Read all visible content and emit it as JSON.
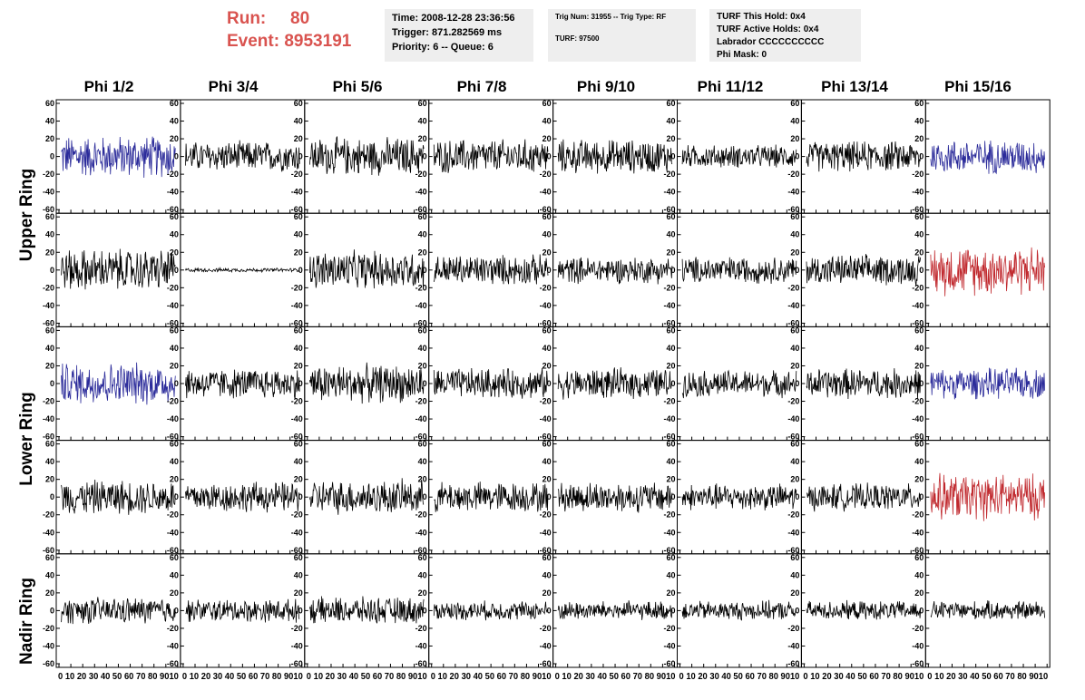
{
  "header": {
    "run_label": "Run:",
    "run_value": "80",
    "event_label": "Event:",
    "event_value": "8953191"
  },
  "info_box_1": {
    "time": "Time: 2008-12-28 23:36:56",
    "trigger": "Trigger: 871.282569 ms",
    "priority": "Priority: 6 -- Queue: 6"
  },
  "info_box_2": {
    "trig": "Trig Num: 31955 -- Trig Type: RF",
    "turf": "TURF: 97500"
  },
  "info_box_3": {
    "hold": "TURF This Hold: 0x4",
    "active": "TURF Active Holds: 0x4",
    "labrador": "Labrador CCCCCCCCCC",
    "mask": "Phi Mask: 0"
  },
  "columns": [
    "Phi 1/2",
    "Phi 3/4",
    "Phi 5/6",
    "Phi 7/8",
    "Phi 9/10",
    "Phi 11/12",
    "Phi 13/14",
    "Phi 15/16"
  ],
  "rings": [
    "Upper Ring",
    "Lower Ring",
    "Nadir Ring"
  ],
  "colors": {
    "black": "#000000",
    "blue": "#2b2b9a",
    "red": "#c0282d",
    "accent": "#d9534f"
  },
  "chart_data": {
    "type": "line",
    "xlim": [
      0,
      100
    ],
    "ylim": [
      -60,
      60
    ],
    "xticks": [
      0,
      10,
      20,
      30,
      40,
      50,
      60,
      70,
      80,
      90,
      100
    ],
    "yticks": [
      -60,
      -40,
      -20,
      0,
      20,
      40,
      60
    ],
    "x_tick_label_strip": "0 10 20 30 40 50 60 70 80 9010",
    "rows": 5,
    "cols": 8,
    "panel_styles": [
      [
        "blue",
        "black",
        "black",
        "black",
        "black",
        "black",
        "black",
        "blue"
      ],
      [
        "black",
        "black",
        "black",
        "black",
        "black",
        "black",
        "black",
        "red"
      ],
      [
        "blue",
        "black",
        "black",
        "black",
        "black",
        "black",
        "black",
        "blue"
      ],
      [
        "black",
        "black",
        "black",
        "black",
        "black",
        "black",
        "black",
        "red"
      ],
      [
        "black",
        "black",
        "black",
        "black",
        "black",
        "black",
        "black",
        "black"
      ]
    ],
    "panel_amplitudes": [
      [
        22,
        16,
        20,
        18,
        18,
        12,
        16,
        18
      ],
      [
        22,
        2,
        20,
        16,
        14,
        14,
        16,
        26
      ],
      [
        22,
        16,
        20,
        16,
        16,
        14,
        16,
        16
      ],
      [
        18,
        16,
        18,
        16,
        16,
        14,
        14,
        24
      ],
      [
        14,
        12,
        14,
        10,
        10,
        10,
        10,
        10
      ]
    ]
  }
}
